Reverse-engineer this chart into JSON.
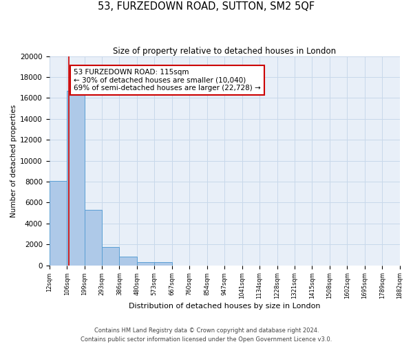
{
  "title": "53, FURZEDOWN ROAD, SUTTON, SM2 5QF",
  "subtitle": "Size of property relative to detached houses in London",
  "xlabel": "Distribution of detached houses by size in London",
  "ylabel": "Number of detached properties",
  "bin_edges": [
    12,
    106,
    199,
    293,
    386,
    480,
    573,
    667,
    760,
    854,
    947,
    1041,
    1134,
    1228,
    1321,
    1415,
    1508,
    1602,
    1695,
    1789,
    1882
  ],
  "bin_labels": [
    "12sqm",
    "106sqm",
    "199sqm",
    "293sqm",
    "386sqm",
    "480sqm",
    "573sqm",
    "667sqm",
    "760sqm",
    "854sqm",
    "947sqm",
    "1041sqm",
    "1134sqm",
    "1228sqm",
    "1321sqm",
    "1415sqm",
    "1508sqm",
    "1602sqm",
    "1695sqm",
    "1789sqm",
    "1882sqm"
  ],
  "counts": [
    8100,
    16700,
    5300,
    1750,
    800,
    300,
    300,
    0,
    0,
    0,
    0,
    0,
    0,
    0,
    0,
    0,
    0,
    0,
    0,
    0
  ],
  "bar_color": "#aec9e8",
  "bar_edge_color": "#5a9fd4",
  "vline_x": 115,
  "vline_color": "#cc0000",
  "ylim": [
    0,
    20000
  ],
  "yticks": [
    0,
    2000,
    4000,
    6000,
    8000,
    10000,
    12000,
    14000,
    16000,
    18000,
    20000
  ],
  "annotation_title": "53 FURZEDOWN ROAD: 115sqm",
  "annotation_line1": "← 30% of detached houses are smaller (10,040)",
  "annotation_line2": "69% of semi-detached houses are larger (22,728) →",
  "annotation_box_color": "#ffffff",
  "annotation_box_edge": "#cc0000",
  "grid_color": "#c8d8ea",
  "bg_color": "#e8eff8",
  "footer_line1": "Contains HM Land Registry data © Crown copyright and database right 2024.",
  "footer_line2": "Contains public sector information licensed under the Open Government Licence v3.0."
}
